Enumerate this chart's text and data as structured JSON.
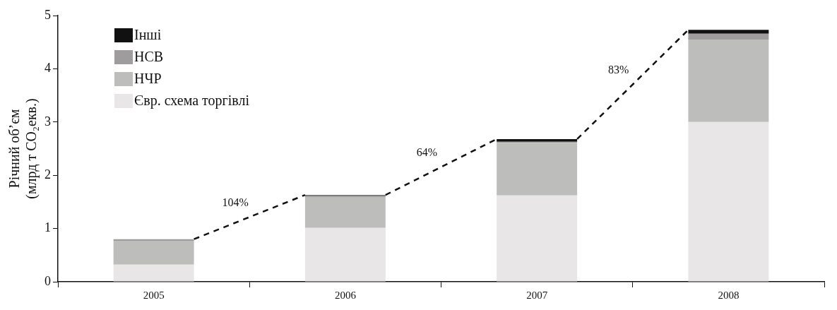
{
  "chart_data": {
    "type": "bar",
    "ylabel": "Річний об’єм\n(млрд т CO₂екв.)",
    "categories": [
      "2005",
      "2006",
      "2007",
      "2008"
    ],
    "stacked": true,
    "ylim": [
      0,
      5
    ],
    "yticks": [
      0,
      1,
      2,
      3,
      4,
      5
    ],
    "grid": false,
    "legend": "top left",
    "series": [
      {
        "name": "Євр. схема торгівлі",
        "color": "#e8e6e7",
        "values": [
          0.32,
          1.01,
          1.62,
          3.0
        ]
      },
      {
        "name": "НЧР",
        "color": "#bdbdbb",
        "values": [
          0.45,
          0.58,
          0.99,
          1.55
        ]
      },
      {
        "name": "НСВ",
        "color": "#9e9c9c",
        "values": [
          0.03,
          0.03,
          0.02,
          0.11
        ]
      },
      {
        "name": "Інші",
        "color": "#111111",
        "values": [
          0,
          0.01,
          0.05,
          0.07
        ]
      }
    ],
    "annotations": [
      "104%",
      "64%",
      "83%"
    ]
  }
}
